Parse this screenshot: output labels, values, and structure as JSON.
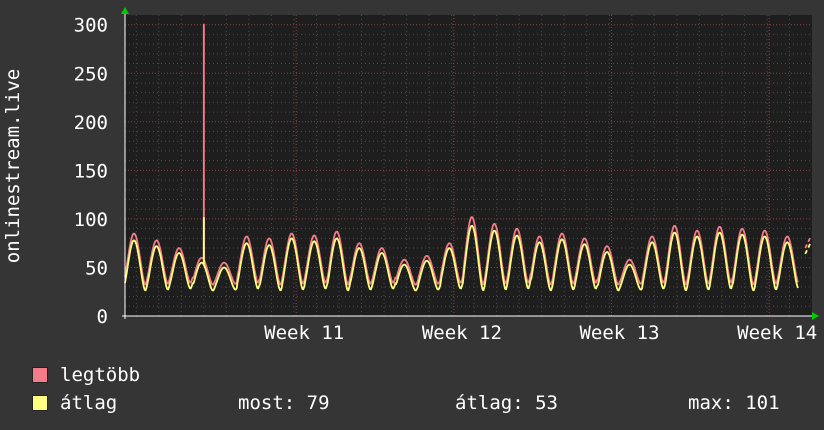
{
  "chart_data": {
    "type": "line",
    "ylabel": "onlinestream.live",
    "ylim": [
      0,
      310
    ],
    "yticks": [
      0,
      50,
      100,
      150,
      200,
      250,
      300
    ],
    "week_labels": [
      "Week 11",
      "Week 12",
      "Week 13",
      "Week 14"
    ],
    "week_positions_days": [
      7.6,
      14.6,
      21.6,
      28.6
    ],
    "x_range_days": [
      0,
      30.5
    ],
    "grid": true,
    "series": [
      {
        "name": "legtöbb",
        "color": "#f47c86",
        "daily_peaks": [
          85,
          78,
          70,
          60,
          55,
          82,
          80,
          85,
          83,
          87,
          75,
          70,
          58,
          62,
          75,
          102,
          95,
          90,
          82,
          85,
          80,
          72,
          58,
          82,
          93,
          88,
          92,
          90,
          88,
          82,
          65,
          78,
          92,
          93,
          95,
          100,
          90,
          75,
          80
        ],
        "spike": {
          "day": 3.5,
          "value": 300
        }
      },
      {
        "name": "átlag",
        "color": "#ffff80",
        "daily_peaks": [
          78,
          72,
          65,
          55,
          50,
          75,
          73,
          80,
          77,
          80,
          70,
          65,
          53,
          57,
          70,
          93,
          88,
          83,
          76,
          79,
          74,
          66,
          53,
          76,
          86,
          82,
          86,
          84,
          82,
          76,
          60,
          72,
          85,
          86,
          88,
          93,
          84,
          70,
          74
        ],
        "spike": {
          "day": 3.5,
          "value": 101
        }
      }
    ]
  },
  "legend": {
    "items": [
      {
        "label": "legtöbb",
        "color": "#f47c86"
      },
      {
        "label": "átlag",
        "color": "#ffff80"
      }
    ]
  },
  "stats": {
    "current": "most: 79",
    "average": "átlag: 53",
    "max": "max: 101"
  }
}
